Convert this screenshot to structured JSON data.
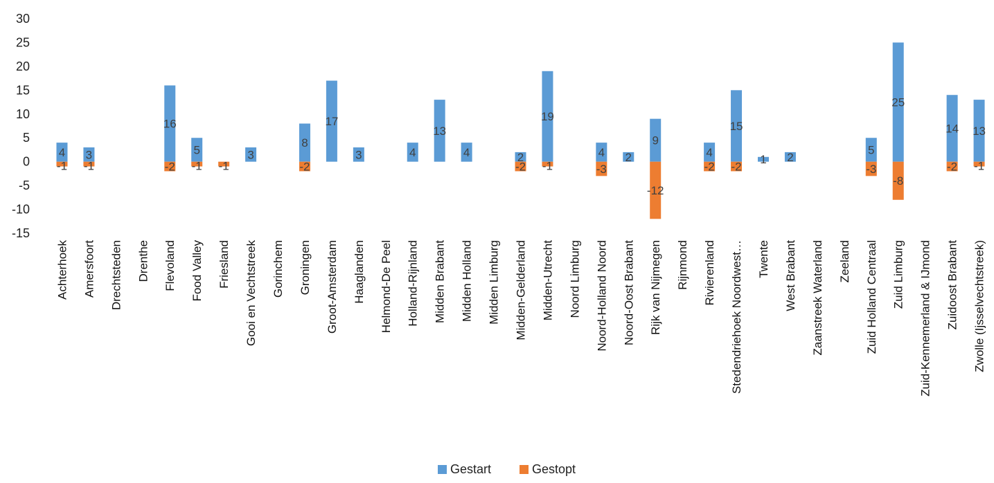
{
  "chart_data": {
    "type": "bar",
    "categories": [
      "Achterhoek",
      "Amersfoort",
      "Drechtsteden",
      "Drenthe",
      "Flevoland",
      "Food Valley",
      "Friesland",
      "Gooi en Vechtstreek",
      "Gorinchem",
      "Groningen",
      "Groot-Amsterdam",
      "Haaglanden",
      "Helmond-De Peel",
      "Holland-Rijnland",
      "Midden Brabant",
      "Midden Holland",
      "Midden Limburg",
      "Midden-Gelderland",
      "Midden-Utrecht",
      "Noord Limburg",
      "Noord-Holland Noord",
      "Noord-Oost Brabant",
      "Rijk van Nijmegen",
      "Rijnmond",
      "Rivierenland",
      "Stedendriehoek Noordwest…",
      "Twente",
      "West Brabant",
      "Zaanstreek Waterland",
      "Zeeland",
      "Zuid Holland Centraal",
      "Zuid Limburg",
      "Zuid-Kennemerland & IJmond",
      "Zuidoost Brabant",
      "Zwolle (Ijsselvechtstreek)"
    ],
    "series": [
      {
        "name": "Gestart",
        "color": "#5B9BD5",
        "values": [
          4,
          3,
          null,
          null,
          16,
          5,
          null,
          3,
          null,
          8,
          17,
          3,
          null,
          4,
          13,
          4,
          null,
          2,
          19,
          null,
          4,
          2,
          9,
          null,
          4,
          15,
          1,
          2,
          null,
          null,
          5,
          25,
          null,
          14,
          13
        ]
      },
      {
        "name": "Gestopt",
        "color": "#ED7D31",
        "values": [
          -1,
          -1,
          null,
          null,
          -2,
          -1,
          -1,
          null,
          null,
          -2,
          null,
          null,
          null,
          null,
          null,
          null,
          null,
          -2,
          -1,
          null,
          -3,
          null,
          -12,
          null,
          -2,
          -2,
          null,
          null,
          null,
          null,
          -3,
          -8,
          null,
          -2,
          -1
        ]
      }
    ],
    "yticks": [
      "30",
      "25",
      "20",
      "15",
      "10",
      "5",
      "0",
      "-5",
      "-10",
      "-15"
    ],
    "ylim": [
      -15,
      30
    ],
    "grid": false,
    "legend": "bottom-center"
  }
}
